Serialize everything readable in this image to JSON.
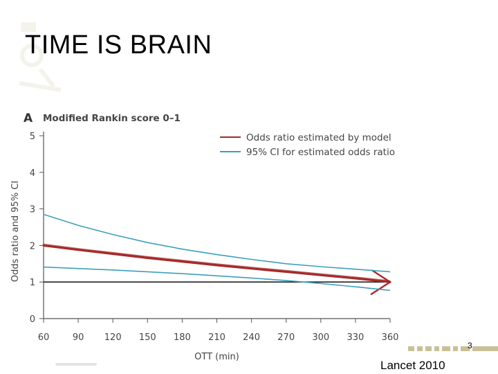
{
  "slide": {
    "title": "TIME IS BRAIN",
    "page_number": "3",
    "source": "Lancet 2010"
  },
  "colors": {
    "model": "#a52a2a",
    "ci": "#3aa0bd",
    "reference": "#222222",
    "axis": "#555555",
    "text": "#444444",
    "footer_accent": "#c8c196"
  },
  "chart_data": {
    "type": "line",
    "panel_letter": "A",
    "title": "Modified Rankin score  0–1",
    "xlabel": "OTT (min)",
    "ylabel": "Odds ratio and 95% CI",
    "xlim": [
      60,
      360
    ],
    "ylim": [
      0,
      5
    ],
    "xticks": [
      60,
      90,
      120,
      150,
      180,
      210,
      240,
      270,
      300,
      330,
      360
    ],
    "yticks": [
      0,
      1,
      2,
      3,
      4,
      5
    ],
    "legend_position": "top-right",
    "grid": false,
    "series": [
      {
        "name": "Odds ratio estimated by model",
        "role": "model",
        "x": [
          60,
          90,
          120,
          150,
          180,
          210,
          240,
          270,
          300,
          330,
          360
        ],
        "y": [
          2.0,
          1.88,
          1.77,
          1.66,
          1.56,
          1.46,
          1.37,
          1.28,
          1.19,
          1.1,
          1.0
        ]
      },
      {
        "name": "95% CI for estimated odds ratio",
        "role": "ci_upper",
        "x": [
          60,
          90,
          120,
          150,
          180,
          210,
          240,
          270,
          300,
          330,
          360
        ],
        "y": [
          2.85,
          2.55,
          2.3,
          2.08,
          1.9,
          1.75,
          1.62,
          1.5,
          1.42,
          1.35,
          1.28
        ]
      },
      {
        "role": "ci_lower",
        "x": [
          60,
          90,
          120,
          150,
          180,
          210,
          240,
          270,
          300,
          330,
          360
        ],
        "y": [
          1.41,
          1.37,
          1.33,
          1.28,
          1.23,
          1.17,
          1.11,
          1.04,
          0.96,
          0.87,
          0.77
        ]
      }
    ],
    "reference_line": {
      "y": 1
    }
  }
}
